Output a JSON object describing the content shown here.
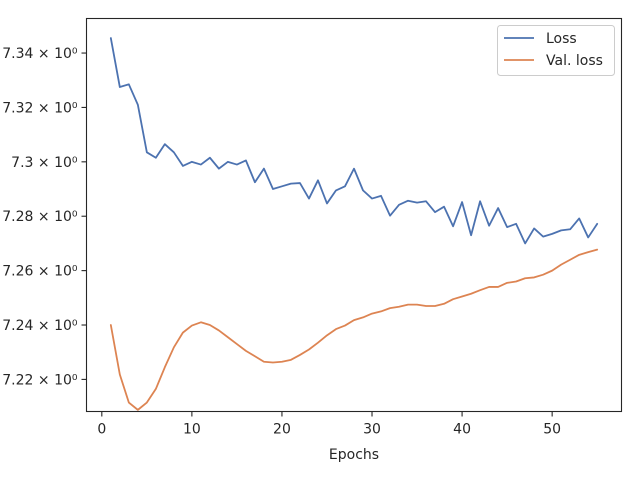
{
  "chart_data": {
    "type": "line",
    "xlabel": "Epochs",
    "ylabel": "",
    "xlim": [
      -1.7,
      57.7
    ],
    "ylim": [
      7.2082,
      7.3527
    ],
    "yscale": "log",
    "grid": false,
    "legend_position": "top-right",
    "x_ticks": [
      0,
      10,
      20,
      30,
      40,
      50
    ],
    "x_tick_labels": [
      "0",
      "10",
      "20",
      "30",
      "40",
      "50"
    ],
    "y_ticks": [
      7.22,
      7.24,
      7.26,
      7.28,
      7.3,
      7.32,
      7.34
    ],
    "y_tick_labels": [
      "7.22 × 10⁰",
      "7.24 × 10⁰",
      "7.26 × 10⁰",
      "7.28 × 10⁰",
      "7.3 × 10⁰",
      "7.32 × 10⁰",
      "7.34 × 10⁰"
    ],
    "x": [
      1,
      2,
      3,
      4,
      5,
      6,
      7,
      8,
      9,
      10,
      11,
      12,
      13,
      14,
      15,
      16,
      17,
      18,
      19,
      20,
      21,
      22,
      23,
      24,
      25,
      26,
      27,
      28,
      29,
      30,
      31,
      32,
      33,
      34,
      35,
      36,
      37,
      38,
      39,
      40,
      41,
      42,
      43,
      44,
      45,
      46,
      47,
      48,
      49,
      50,
      51,
      52,
      53,
      54,
      55
    ],
    "series": [
      {
        "name": "Loss",
        "color": "#4c72b0",
        "values": [
          7.3455,
          7.3275,
          7.3285,
          7.321,
          7.3035,
          7.3015,
          7.3065,
          7.3035,
          7.2985,
          7.3,
          7.299,
          7.3015,
          7.2975,
          7.3,
          7.299,
          7.3005,
          7.2925,
          7.2975,
          7.29,
          7.291,
          7.292,
          7.2922,
          7.2865,
          7.2932,
          7.2847,
          7.2895,
          7.291,
          7.2975,
          7.2895,
          7.2865,
          7.2875,
          7.2802,
          7.2842,
          7.2857,
          7.285,
          7.2855,
          7.2815,
          7.2835,
          7.2763,
          7.2852,
          7.273,
          7.2855,
          7.2765,
          7.283,
          7.276,
          7.2772,
          7.27,
          7.2755,
          7.2725,
          7.2735,
          7.2748,
          7.2752,
          7.2792,
          7.2722,
          7.2772
        ]
      },
      {
        "name": "Val. loss",
        "color": "#dd8452",
        "values": [
          7.24,
          7.2218,
          7.2115,
          7.2088,
          7.2115,
          7.2165,
          7.2245,
          7.2318,
          7.2372,
          7.2398,
          7.241,
          7.24,
          7.238,
          7.2355,
          7.233,
          7.2305,
          7.2285,
          7.2265,
          7.2262,
          7.2265,
          7.2272,
          7.229,
          7.231,
          7.2335,
          7.2362,
          7.2385,
          7.2398,
          7.2418,
          7.2428,
          7.2442,
          7.245,
          7.2462,
          7.2467,
          7.2475,
          7.2475,
          7.247,
          7.247,
          7.2478,
          7.2495,
          7.2505,
          7.2515,
          7.2528,
          7.254,
          7.254,
          7.2555,
          7.256,
          7.2572,
          7.2575,
          7.2585,
          7.26,
          7.2622,
          7.264,
          7.2658,
          7.2668,
          7.2677
        ]
      }
    ]
  }
}
